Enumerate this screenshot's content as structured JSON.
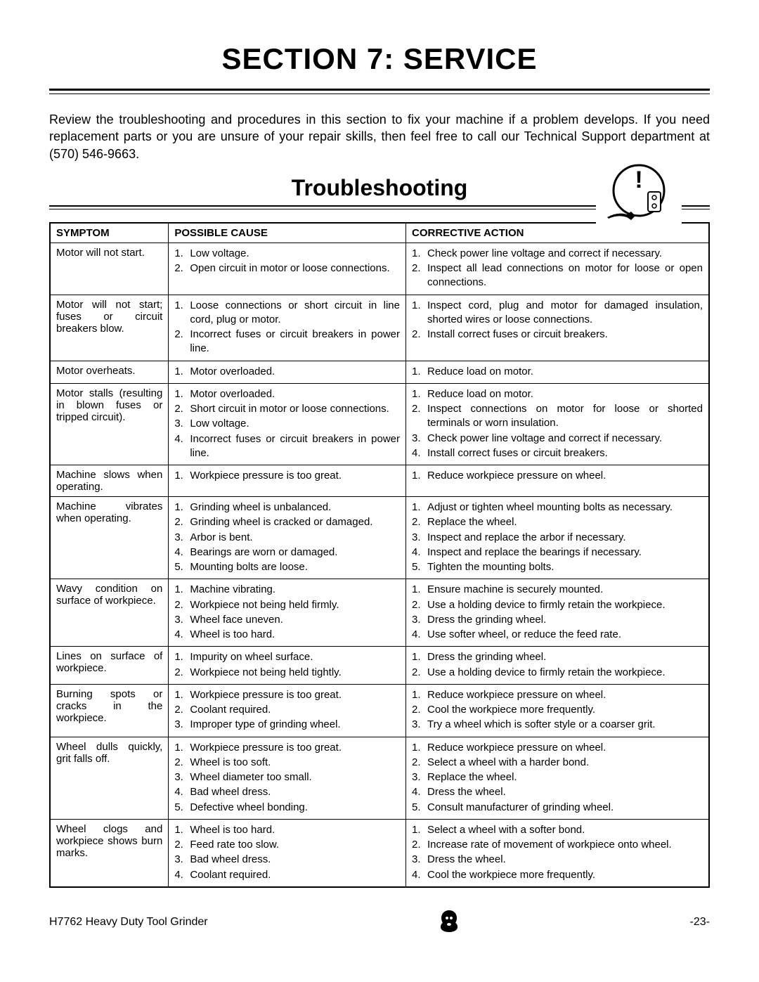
{
  "section_title": "SECTION 7: SERVICE",
  "intro": "Review the troubleshooting and procedures in this section to fix your machine if a problem develops. If you need replacement parts or you are unsure of your repair skills, then feel free to call our Technical Support department at (570) 546-9663.",
  "subhead": "Troubleshooting",
  "columns": {
    "symptom": "SYMPTOM",
    "cause": "POSSIBLE CAUSE",
    "action": "CORRECTIVE ACTION"
  },
  "rows": [
    {
      "symptom": "Motor will not start.",
      "causes": [
        "Low voltage.",
        "Open circuit in motor or loose connections."
      ],
      "actions": [
        "Check power line voltage and correct if necessary.",
        "Inspect all lead connections on motor for loose or open connections."
      ]
    },
    {
      "symptom": "Motor will not start; fuses or circuit breakers blow.",
      "causes": [
        "Loose connections or short circuit in line cord, plug or motor.",
        "Incorrect fuses or circuit breakers in power line."
      ],
      "actions": [
        "Inspect cord, plug and motor for damaged insulation, shorted wires or loose connections.",
        "Install correct fuses or circuit breakers."
      ]
    },
    {
      "symptom": "Motor overheats.",
      "causes": [
        "Motor overloaded."
      ],
      "actions": [
        "Reduce load on motor."
      ]
    },
    {
      "symptom": "Motor stalls (resulting in blown fuses or tripped circuit).",
      "causes": [
        "Motor overloaded.",
        "Short circuit in motor or loose connections.",
        "Low voltage.",
        "Incorrect fuses or circuit breakers in power line."
      ],
      "actions": [
        "Reduce load on motor.",
        "Inspect connections on motor for loose or shorted terminals or worn insulation.",
        "Check power line voltage and correct if necessary.",
        "Install correct fuses or circuit breakers."
      ]
    },
    {
      "symptom": "Machine slows when operating.",
      "causes": [
        "Workpiece pressure is too great."
      ],
      "actions": [
        "Reduce workpiece pressure on wheel."
      ]
    },
    {
      "symptom": "Machine vibrates when operating.",
      "causes": [
        "Grinding wheel is unbalanced.",
        "Grinding wheel is cracked or damaged.",
        "Arbor is bent.",
        "Bearings are worn or damaged.",
        "Mounting bolts are loose."
      ],
      "actions": [
        "Adjust or tighten wheel mounting bolts as necessary.",
        "Replace the wheel.",
        "Inspect and replace the arbor if necessary.",
        "Inspect and replace the bearings if necessary.",
        "Tighten the mounting bolts."
      ]
    },
    {
      "symptom": "Wavy condition on surface of workpiece.",
      "causes": [
        "Machine vibrating.",
        "Workpiece not being held firmly.",
        "Wheel face uneven.",
        "Wheel is too hard."
      ],
      "actions": [
        "Ensure machine is securely mounted.",
        "Use a holding device to firmly retain the workpiece.",
        "Dress the grinding wheel.",
        "Use softer wheel, or reduce the feed rate."
      ]
    },
    {
      "symptom": "Lines on surface of workpiece.",
      "causes": [
        "Impurity on wheel surface.",
        "Workpiece not being held tightly."
      ],
      "actions": [
        "Dress the grinding wheel.",
        "Use a holding device to firmly retain the workpiece."
      ]
    },
    {
      "symptom": "Burning spots or cracks in the workpiece.",
      "causes": [
        "Workpiece pressure is too great.",
        "Coolant required.",
        "Improper type of grinding wheel."
      ],
      "actions": [
        "Reduce workpiece pressure on wheel.",
        "Cool the workpiece more frequently.",
        "Try a wheel which is softer style or a coarser grit."
      ]
    },
    {
      "symptom": "Wheel dulls quickly, grit falls off.",
      "causes": [
        "Workpiece pressure is too great.",
        "Wheel is too soft.",
        "Wheel diameter too small.",
        "Bad wheel dress.",
        "Defective wheel bonding."
      ],
      "actions": [
        "Reduce workpiece pressure on wheel.",
        "Select a wheel with a harder bond.",
        "Replace the wheel.",
        "Dress the wheel.",
        "Consult manufacturer of grinding wheel."
      ]
    },
    {
      "symptom": "Wheel clogs and workpiece shows burn marks.",
      "causes": [
        "Wheel is too hard.",
        "Feed rate too slow.",
        "Bad wheel dress.",
        "Coolant required."
      ],
      "actions": [
        "Select a wheel with a softer bond.",
        "Increase rate of movement of workpiece onto wheel.",
        "Dress the wheel.",
        "Cool the workpiece more frequently."
      ]
    }
  ],
  "footer": {
    "left": "H7762 Heavy Duty Tool Grinder",
    "right": "-23-"
  }
}
